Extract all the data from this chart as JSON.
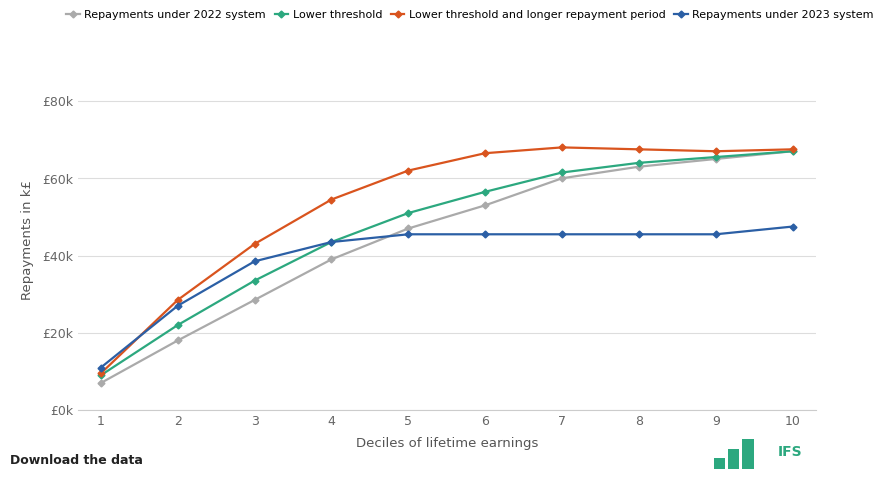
{
  "x": [
    1,
    2,
    3,
    4,
    5,
    6,
    7,
    8,
    9,
    10
  ],
  "series_order": [
    "repayments_2022",
    "lower_threshold",
    "lower_threshold_longer",
    "repayments_2023"
  ],
  "series": {
    "repayments_2022": {
      "label": "Repayments under 2022 system",
      "color": "#aaaaaa",
      "values": [
        7000,
        18000,
        28500,
        39000,
        47000,
        53000,
        60000,
        63000,
        65000,
        67000
      ]
    },
    "lower_threshold": {
      "label": "Lower threshold",
      "color": "#2ca87f",
      "values": [
        9000,
        22000,
        33500,
        43500,
        51000,
        56500,
        61500,
        64000,
        65500,
        67000
      ]
    },
    "lower_threshold_longer": {
      "label": "Lower threshold and longer repayment period",
      "color": "#d9541e",
      "values": [
        9500,
        28500,
        43000,
        54500,
        62000,
        66500,
        68000,
        67500,
        67000,
        67500
      ]
    },
    "repayments_2023": {
      "label": "Repayments under 2023 system",
      "color": "#2b5fa5",
      "values": [
        11000,
        27000,
        38500,
        43500,
        45500,
        45500,
        45500,
        45500,
        45500,
        47500
      ]
    }
  },
  "xlabel": "Deciles of lifetime earnings",
  "ylabel": "Repayments in k£",
  "ytick_labels": [
    "£0k",
    "£20k",
    "£40k",
    "£60k",
    "£80k"
  ],
  "ytick_values": [
    0,
    20000,
    40000,
    60000,
    80000
  ],
  "xlim": [
    0.7,
    10.3
  ],
  "ylim": [
    0,
    88000
  ],
  "background_color": "#ffffff",
  "grid_color": "#dddddd",
  "legend_fontsize": 8.0,
  "axis_label_fontsize": 9.5,
  "tick_fontsize": 9,
  "marker": "D",
  "marker_size": 3.5,
  "line_width": 1.6,
  "footer_text": "Download the data",
  "ifs_color": "#2ca87f"
}
